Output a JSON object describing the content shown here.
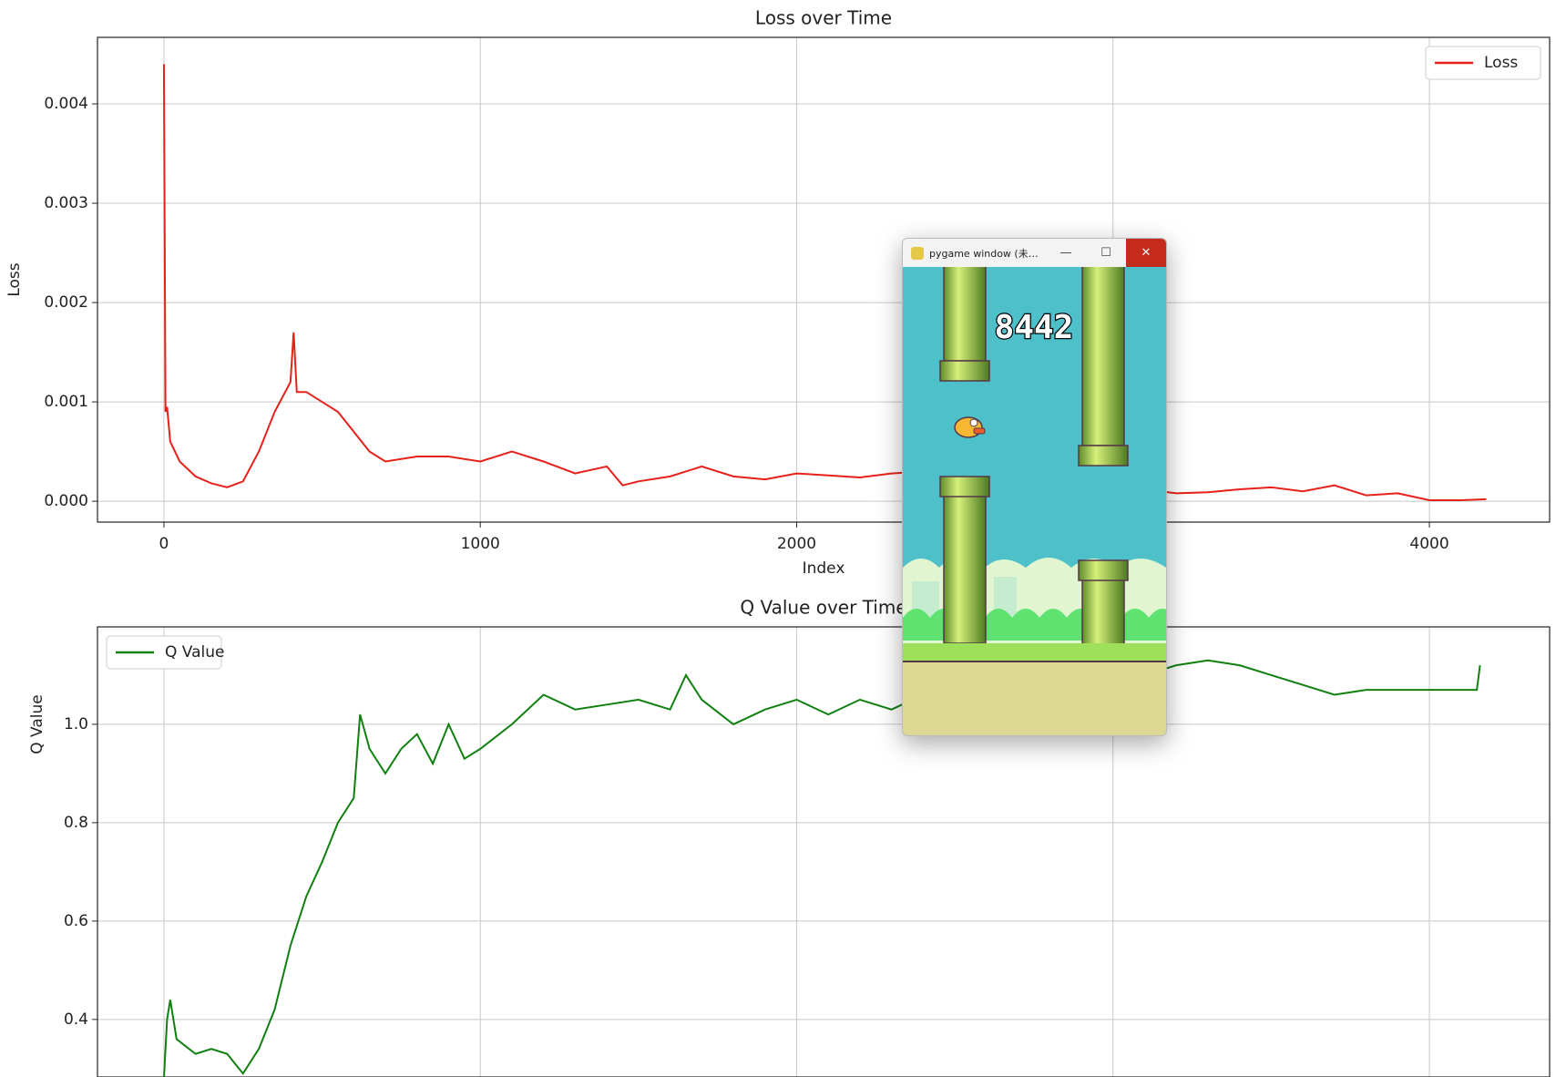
{
  "chart_data": [
    {
      "type": "line",
      "title": "Loss over Time",
      "xlabel": "Index",
      "ylabel": "Loss",
      "x": [
        0,
        5,
        10,
        20,
        50,
        100,
        150,
        200,
        250,
        300,
        350,
        400,
        410,
        420,
        450,
        500,
        550,
        600,
        650,
        700,
        800,
        900,
        1000,
        1100,
        1200,
        1300,
        1400,
        1450,
        1500,
        1600,
        1700,
        1800,
        1900,
        2000,
        2100,
        2200,
        2300,
        2400,
        2500,
        2600,
        2700,
        2800,
        2900,
        3000,
        3100,
        3200,
        3300,
        3400,
        3500,
        3600,
        3700,
        3800,
        3900,
        4000,
        4100,
        4180
      ],
      "series": [
        {
          "name": "Loss",
          "color": "#e8201a",
          "values": [
            0.0044,
            0.0009,
            0.00095,
            0.0006,
            0.0004,
            0.00025,
            0.00018,
            0.00014,
            0.0002,
            0.0005,
            0.0009,
            0.0012,
            0.0017,
            0.0011,
            0.0011,
            0.001,
            0.0009,
            0.0007,
            0.0005,
            0.0004,
            0.00045,
            0.00045,
            0.0004,
            0.0005,
            0.0004,
            0.00028,
            0.00035,
            0.00016,
            0.0002,
            0.00025,
            0.00035,
            0.00025,
            0.00022,
            0.00028,
            0.00026,
            0.00024,
            0.00028,
            0.0003,
            0.00025,
            0.00022,
            0.0002,
            0.0002,
            0.00018,
            0.00015,
            0.00012,
            8e-05,
            9e-05,
            0.00012,
            0.00014,
            0.0001,
            0.00016,
            6e-05,
            8e-05,
            1e-05,
            1e-05,
            2e-05
          ]
        }
      ],
      "xlim": [
        -210,
        4380
      ],
      "ylim": [
        -0.00021,
        0.00467
      ],
      "xticks": [
        0,
        1000,
        2000,
        3000,
        4000
      ],
      "yticks": [
        {
          "value": 0,
          "label": "0.000"
        },
        {
          "value": 0.001,
          "label": "0.001"
        },
        {
          "value": 0.002,
          "label": "0.002"
        },
        {
          "value": 0.003,
          "label": "0.003"
        },
        {
          "value": 0.004,
          "label": "0.004"
        }
      ],
      "grid": true,
      "legend": "upper right"
    },
    {
      "type": "line",
      "title": "Q Value over Time",
      "ylabel": "Q Value",
      "x": [
        0,
        10,
        20,
        40,
        100,
        150,
        200,
        250,
        300,
        350,
        400,
        450,
        500,
        550,
        600,
        620,
        650,
        700,
        750,
        800,
        850,
        900,
        950,
        1000,
        1100,
        1200,
        1300,
        1400,
        1500,
        1600,
        1650,
        1700,
        1800,
        1900,
        2000,
        2100,
        2200,
        2300,
        2400,
        2500,
        2600,
        2700,
        2800,
        2900,
        3000,
        3100,
        3200,
        3300,
        3400,
        3500,
        3600,
        3700,
        3800,
        3900,
        4000,
        4150,
        4160
      ],
      "series": [
        {
          "name": "Q Value",
          "color": "#108010",
          "values": [
            0.28,
            0.4,
            0.44,
            0.36,
            0.33,
            0.34,
            0.33,
            0.29,
            0.34,
            0.42,
            0.55,
            0.65,
            0.72,
            0.8,
            0.85,
            1.02,
            0.95,
            0.9,
            0.95,
            0.98,
            0.92,
            1.0,
            0.93,
            0.95,
            1.0,
            1.06,
            1.03,
            1.04,
            1.05,
            1.03,
            1.1,
            1.05,
            1.0,
            1.03,
            1.05,
            1.02,
            1.05,
            1.03,
            1.06,
            1.04,
            1.05,
            1.05,
            1.06,
            1.08,
            1.1,
            1.1,
            1.12,
            1.13,
            1.12,
            1.1,
            1.08,
            1.06,
            1.07,
            1.07,
            1.07,
            1.07,
            1.12
          ]
        }
      ],
      "xlim": [
        -210,
        4380
      ],
      "ylim": [
        0.283,
        1.198
      ],
      "xticks": [
        0,
        1000,
        2000,
        3000,
        4000
      ],
      "yticks": [
        0.4,
        0.6,
        0.8,
        {
          "value": 1,
          "label": "1.0"
        }
      ],
      "grid": true,
      "legend": "upper left"
    }
  ],
  "window": {
    "title": "pygame window (未…",
    "score": 8442
  }
}
